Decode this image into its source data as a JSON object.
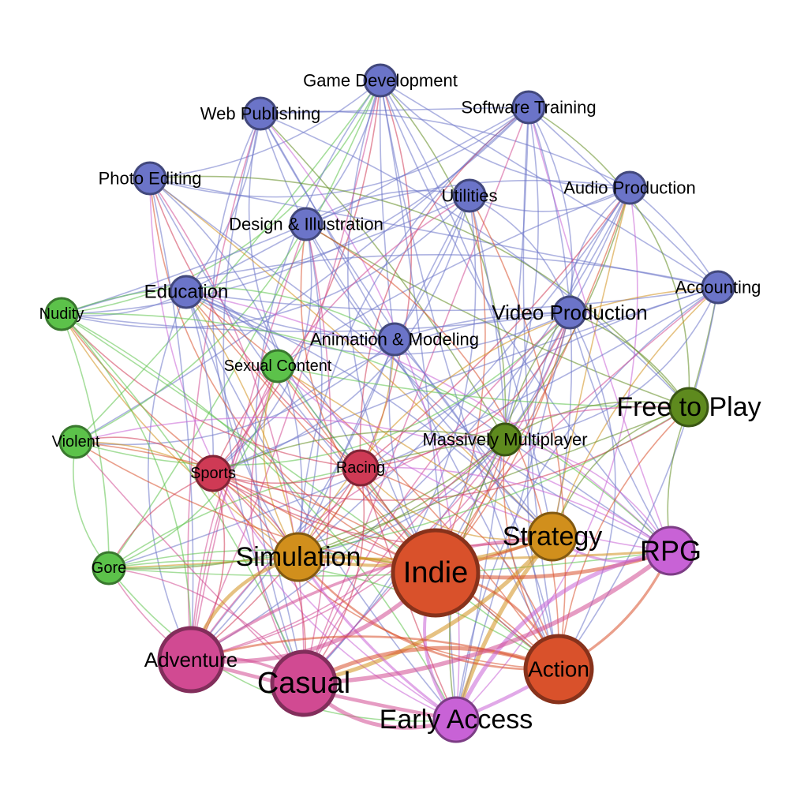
{
  "graph": {
    "colors": {
      "software": "#6b74c8",
      "content": "#5cc24a",
      "freeplay": "#5e8a1e",
      "sports": "#cf3a55",
      "strategy": "#d18f1c",
      "indie": "#d9512b",
      "rpg": "#c862d6",
      "adventure": "#d14a92"
    },
    "nodes": [
      {
        "id": "gamedev",
        "label": "Game Development",
        "group": "software"
      },
      {
        "id": "webpub",
        "label": "Web Publishing",
        "group": "software"
      },
      {
        "id": "softtrain",
        "label": "Software Training",
        "group": "software"
      },
      {
        "id": "photo",
        "label": "Photo Editing",
        "group": "software"
      },
      {
        "id": "utilities",
        "label": "Utilities",
        "group": "software"
      },
      {
        "id": "audio",
        "label": "Audio Production",
        "group": "software"
      },
      {
        "id": "design",
        "label": "Design & Illustration",
        "group": "software"
      },
      {
        "id": "education",
        "label": "Education",
        "group": "software"
      },
      {
        "id": "accounting",
        "label": "Accounting",
        "group": "software"
      },
      {
        "id": "video",
        "label": "Video Production",
        "group": "software"
      },
      {
        "id": "anim",
        "label": "Animation & Modeling",
        "group": "software"
      },
      {
        "id": "nudity",
        "label": "Nudity",
        "group": "content"
      },
      {
        "id": "sexual",
        "label": "Sexual Content",
        "group": "content"
      },
      {
        "id": "violent",
        "label": "Violent",
        "group": "content"
      },
      {
        "id": "gore",
        "label": "Gore",
        "group": "content"
      },
      {
        "id": "f2p",
        "label": "Free to Play",
        "group": "freeplay"
      },
      {
        "id": "mmo",
        "label": "Massively Multiplayer",
        "group": "freeplay"
      },
      {
        "id": "sports",
        "label": "Sports",
        "group": "sports"
      },
      {
        "id": "racing",
        "label": "Racing",
        "group": "sports"
      },
      {
        "id": "strategy",
        "label": "Strategy",
        "group": "strategy"
      },
      {
        "id": "simulation",
        "label": "Simulation",
        "group": "strategy"
      },
      {
        "id": "indie",
        "label": "Indie",
        "group": "indie"
      },
      {
        "id": "action",
        "label": "Action",
        "group": "indie"
      },
      {
        "id": "rpg",
        "label": "RPG",
        "group": "rpg"
      },
      {
        "id": "early",
        "label": "Early Access",
        "group": "rpg"
      },
      {
        "id": "adventure",
        "label": "Adventure",
        "group": "adventure"
      },
      {
        "id": "casual",
        "label": "Casual",
        "group": "adventure"
      }
    ]
  }
}
